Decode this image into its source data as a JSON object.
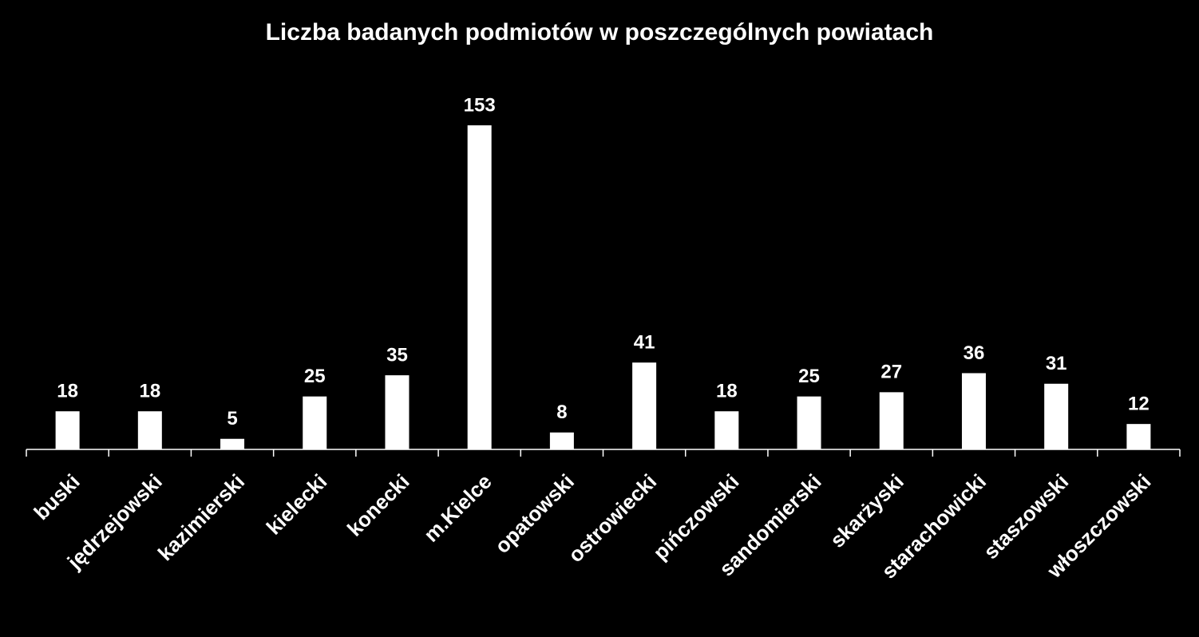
{
  "chart_data": {
    "type": "bar",
    "title": "Liczba badanych podmiotów w poszczególnych powiatach",
    "categories": [
      "buski",
      "jędrzejowski",
      "kazimierski",
      "kielecki",
      "konecki",
      "m.Kielce",
      "opatowski",
      "ostrowiecki",
      "pińczowski",
      "sandomierski",
      "skarżyski",
      "starachowicki",
      "staszowski",
      "włoszczowski"
    ],
    "values": [
      18,
      18,
      5,
      25,
      35,
      153,
      8,
      41,
      18,
      25,
      27,
      36,
      31,
      12
    ],
    "color": "#ffffff"
  }
}
